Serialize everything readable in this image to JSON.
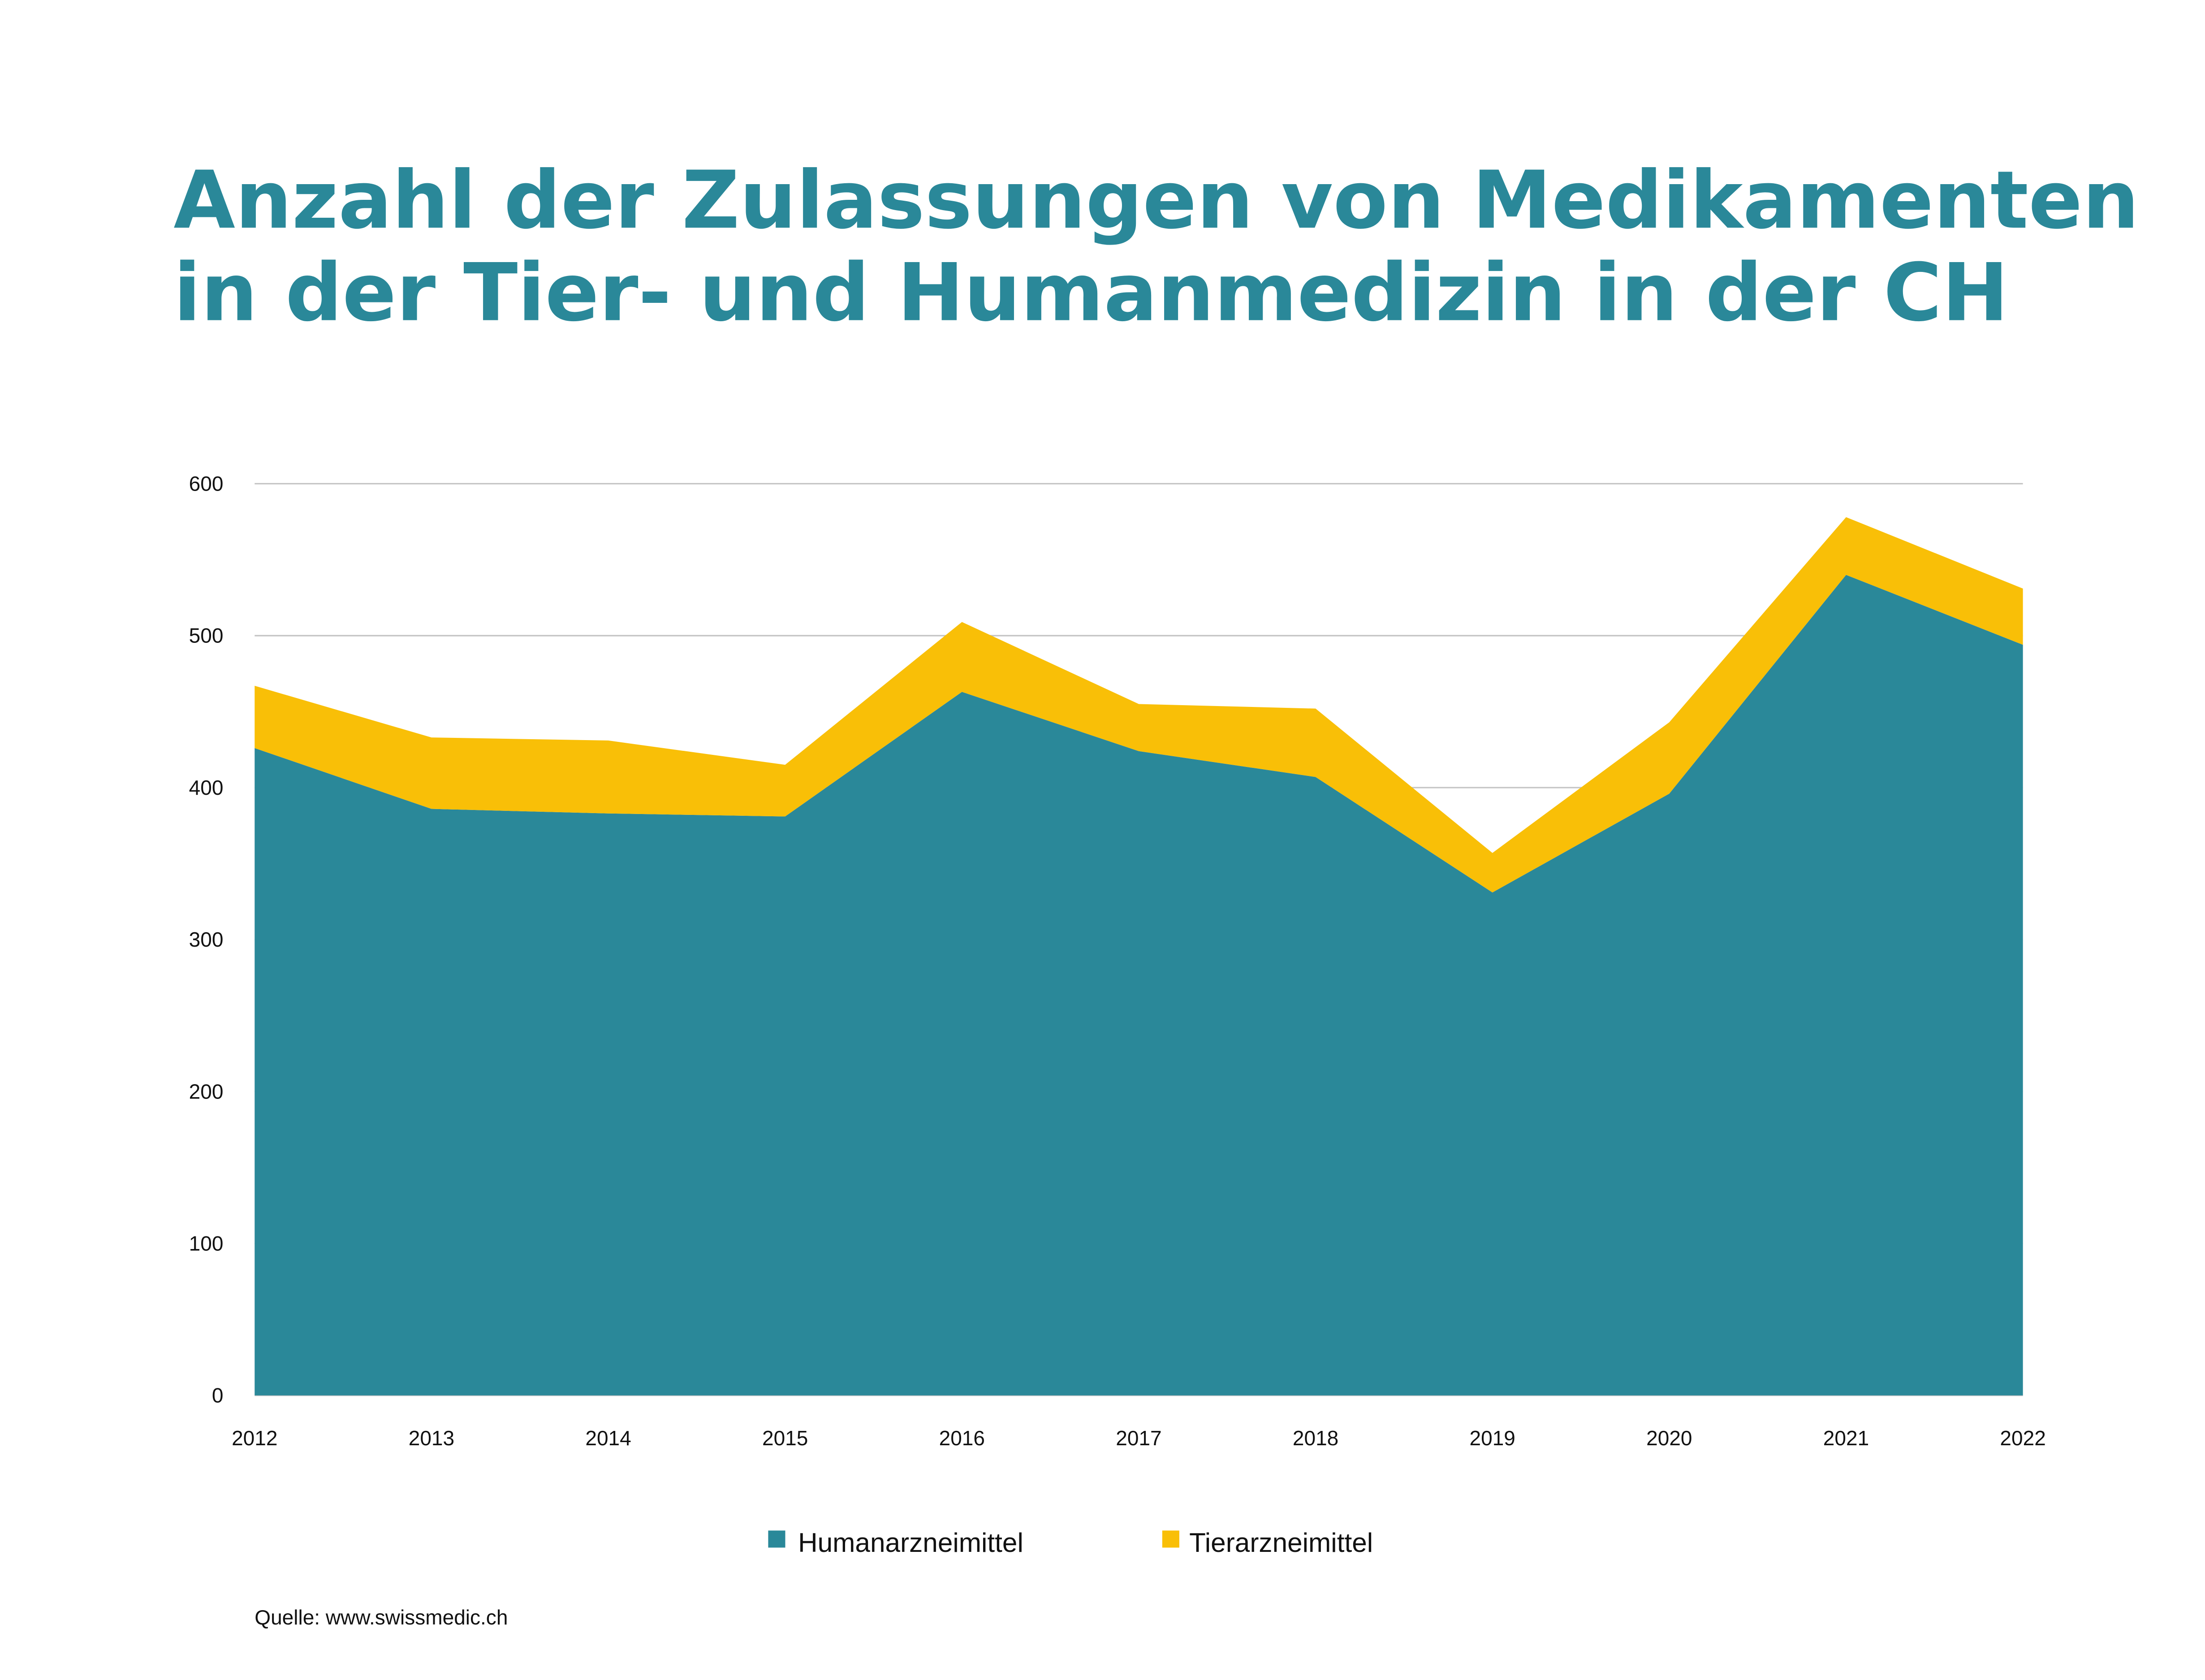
{
  "chart_data": {
    "type": "area",
    "stacked": true,
    "title": [
      "Anzahl der Zulassungen von Medikamenten",
      "in der Tier- und Humanmedizin in der CH"
    ],
    "x": [
      "2012",
      "2013",
      "2014",
      "2015",
      "2016",
      "2017",
      "2018",
      "2019",
      "2020",
      "2021",
      "2022"
    ],
    "series": [
      {
        "name": "Humanarzneimittel",
        "color": "#2a8899",
        "values": [
          426,
          386,
          383,
          381,
          463,
          424,
          407,
          331,
          396,
          540,
          494
        ]
      },
      {
        "name": "Tierarzneimittel",
        "color": "#f9bf07",
        "values": [
          41,
          47,
          48,
          34,
          46,
          31,
          45,
          26,
          47,
          38,
          37
        ]
      }
    ],
    "ylim": [
      0,
      600
    ],
    "yticks": [
      "0",
      "100",
      "200",
      "300",
      "400",
      "500",
      "600"
    ],
    "grid": true,
    "legend_position": "bottom-center",
    "xlabel": "",
    "ylabel": "",
    "source": "Quelle: www.swissmedic.ch"
  }
}
